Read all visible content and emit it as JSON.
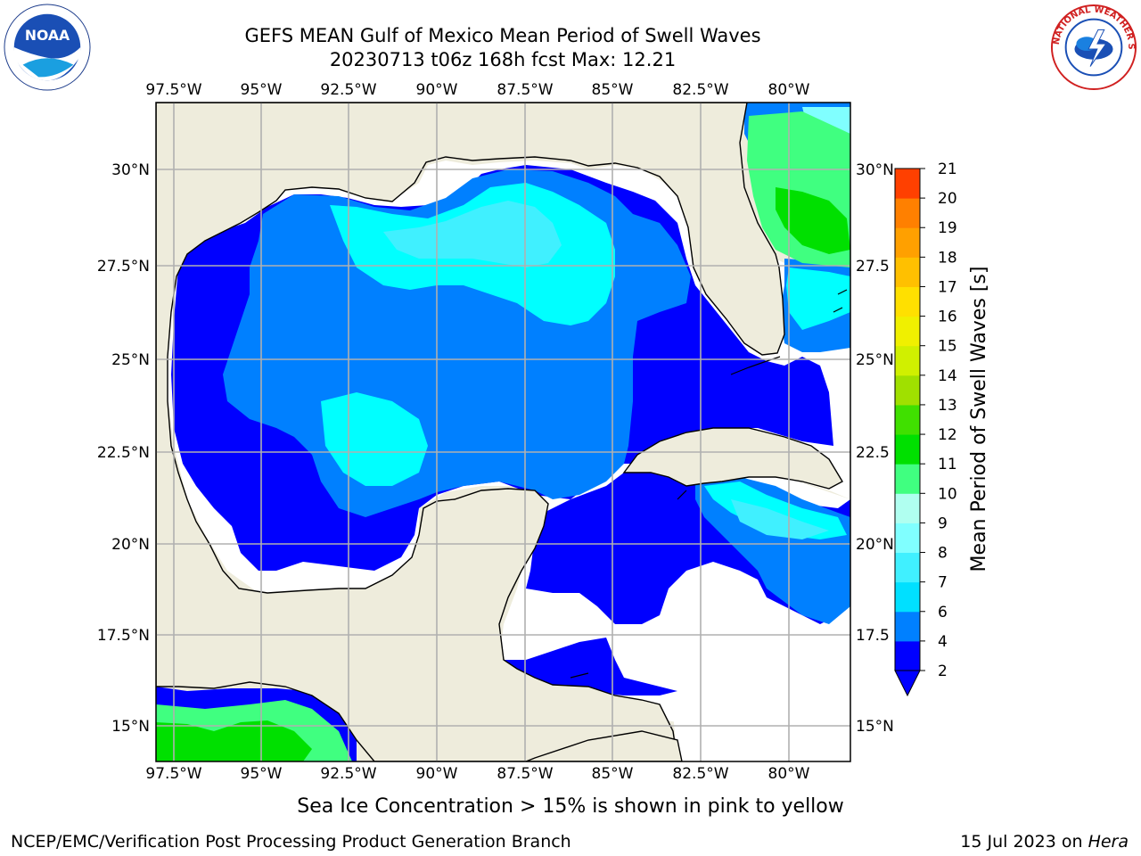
{
  "title": {
    "line1": "GEFS MEAN Gulf of Mexico Mean Period of Swell Waves",
    "line2": "20230713 t06z 168h fcst   Max: 12.21"
  },
  "map": {
    "lon_labels": [
      "97.5°W",
      "95°W",
      "92.5°W",
      "90°W",
      "87.5°W",
      "85°W",
      "82.5°W",
      "80°W"
    ],
    "lat_labels": [
      "30°N",
      "27.5°N",
      "25°N",
      "22.5°N",
      "20°N",
      "17.5°N",
      "15°N"
    ],
    "right_lat_labels": [
      "30°N",
      "27.5",
      "25°N",
      "22.5",
      "20°N",
      "17.5",
      "15°N"
    ],
    "colors": {
      "land": "#eeecdc",
      "sea_nodata": "#ffffff",
      "grid": "#b0b0b0"
    }
  },
  "colorbar": {
    "label": "Mean Period of Swell Waves [s]",
    "ticks": [
      "2",
      "4",
      "6",
      "7",
      "8",
      "9",
      "10",
      "11",
      "12",
      "13",
      "14",
      "15",
      "16",
      "17",
      "18",
      "19",
      "20",
      "21"
    ],
    "colors": [
      "#0000ff",
      "#0080ff",
      "#00e0ff",
      "#40f0ff",
      "#80ffff",
      "#b0fff0",
      "#40ff80",
      "#00e000",
      "#40e000",
      "#a0e000",
      "#d0f000",
      "#f0f000",
      "#ffe000",
      "#ffc000",
      "#ffa000",
      "#ff8000",
      "#ff4000",
      "#ff0000"
    ]
  },
  "footer": {
    "caption": "Sea Ice Concentration > 15% is shown in pink to yellow",
    "credit": "NCEP/EMC/Verification Post Processing Product Generation Branch",
    "date_prefix": "15 Jul 2023 on ",
    "date_host": "Hera"
  },
  "logos": {
    "noaa_text": "NOAA",
    "nws_text": "NATIONAL WEATHER SERVICE"
  }
}
